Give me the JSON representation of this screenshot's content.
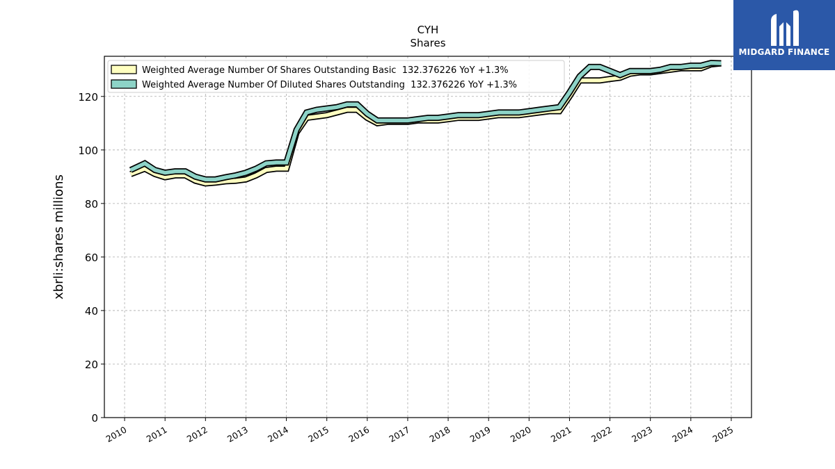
{
  "brand": {
    "name": "MIDGARD FINANCE",
    "bg_color": "#2b58a8",
    "icon": "midgard-logo-icon"
  },
  "chart_data": {
    "type": "area",
    "title": "CYH",
    "subtitle": "Shares",
    "xlabel": "",
    "ylabel": "xbrli:shares millions",
    "xlim": [
      2009.5,
      2025.5
    ],
    "ylim": [
      0,
      135
    ],
    "x_ticks": [
      2010,
      2011,
      2012,
      2013,
      2014,
      2015,
      2016,
      2017,
      2018,
      2019,
      2020,
      2021,
      2022,
      2023,
      2024,
      2025
    ],
    "y_ticks": [
      0,
      20,
      40,
      60,
      80,
      100,
      120
    ],
    "grid": true,
    "legend_position": "top-left",
    "x": [
      2010.15,
      2010.5,
      2010.75,
      2011.0,
      2011.25,
      2011.5,
      2011.75,
      2012.0,
      2012.25,
      2012.5,
      2012.75,
      2013.0,
      2013.25,
      2013.5,
      2013.75,
      2014.0,
      2014.25,
      2014.5,
      2014.75,
      2015.0,
      2015.25,
      2015.5,
      2015.75,
      2016.0,
      2016.25,
      2016.5,
      2016.75,
      2017.0,
      2017.25,
      2017.5,
      2017.75,
      2018.0,
      2018.25,
      2018.5,
      2018.75,
      2019.0,
      2019.25,
      2019.5,
      2019.75,
      2020.0,
      2020.25,
      2020.5,
      2020.75,
      2021.0,
      2021.25,
      2021.5,
      2021.75,
      2022.0,
      2022.25,
      2022.5,
      2022.75,
      2023.0,
      2023.25,
      2023.5,
      2023.75,
      2024.0,
      2024.25,
      2024.5,
      2024.75
    ],
    "series": [
      {
        "name": "Weighted Average Number Of Shares Outstanding Basic  132.376226 YoY +1.3%",
        "color": "#ffffc0",
        "values": [
          91.0,
          93.0,
          91.0,
          89.8,
          90.5,
          90.5,
          88.5,
          87.5,
          87.8,
          88.3,
          88.5,
          89.0,
          90.5,
          92.5,
          93.0,
          93.0,
          106.5,
          112.0,
          112.5,
          113.0,
          114.0,
          115.0,
          115.0,
          112.0,
          110.0,
          110.5,
          110.5,
          110.5,
          111.0,
          111.0,
          111.0,
          111.5,
          112.0,
          112.0,
          112.0,
          112.5,
          113.0,
          113.0,
          113.0,
          113.5,
          114.0,
          114.5,
          114.5,
          120.0,
          126.0,
          126.0,
          126.0,
          126.5,
          127.0,
          128.5,
          129.0,
          129.0,
          129.5,
          130.0,
          130.5,
          130.5,
          130.5,
          132.0,
          132.376226
        ]
      },
      {
        "name": "Weighted Average Number Of Diluted Shares Outstanding  132.376226 YoY +1.3%",
        "color": "#8dd3c7",
        "values": [
          92.5,
          95.0,
          92.5,
          91.5,
          92.0,
          92.0,
          90.0,
          89.0,
          89.0,
          89.8,
          90.5,
          91.5,
          93.0,
          95.0,
          95.3,
          95.3,
          107.5,
          114.0,
          115.0,
          115.5,
          116.0,
          117.0,
          117.0,
          113.5,
          111.0,
          111.0,
          111.0,
          111.0,
          111.5,
          112.0,
          112.0,
          112.5,
          113.0,
          113.0,
          113.0,
          113.5,
          114.0,
          114.0,
          114.0,
          114.5,
          115.0,
          115.5,
          116.0,
          121.5,
          127.5,
          131.0,
          131.0,
          129.5,
          128.0,
          129.5,
          129.5,
          129.5,
          130.0,
          131.0,
          131.0,
          131.5,
          131.5,
          132.5,
          132.376226
        ]
      }
    ]
  }
}
